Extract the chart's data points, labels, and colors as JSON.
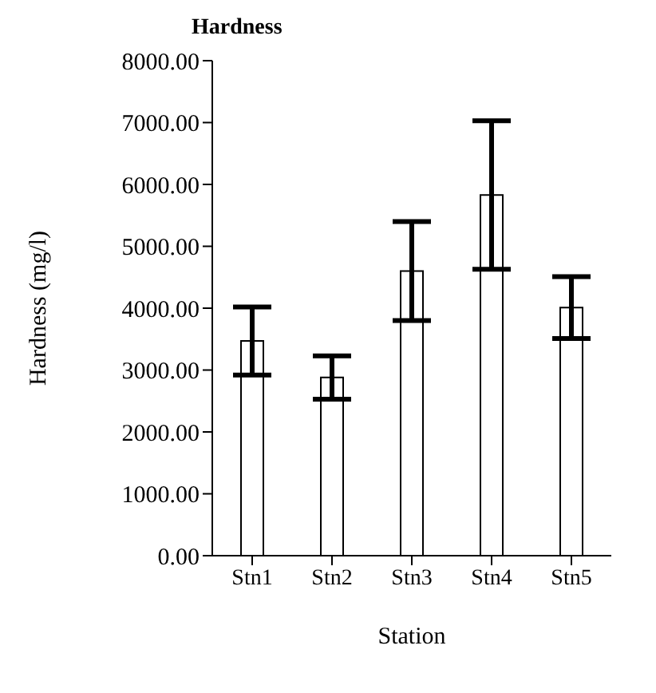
{
  "chart_data": {
    "type": "bar",
    "title": "Hardness",
    "xlabel": "Station",
    "ylabel": "Hardness (mg/l)",
    "categories": [
      "Stn1",
      "Stn2",
      "Stn3",
      "Stn4",
      "Stn5"
    ],
    "values": [
      3470,
      2880,
      4600,
      5830,
      4010
    ],
    "errors": [
      550,
      350,
      800,
      1200,
      500
    ],
    "color": "#ffffff",
    "ylim": [
      0,
      8000
    ],
    "yticks": [
      {
        "value": 0,
        "label": "0.00"
      },
      {
        "value": 1000,
        "label": "1000.00"
      },
      {
        "value": 2000,
        "label": "2000.00"
      },
      {
        "value": 3000,
        "label": "3000.00"
      },
      {
        "value": 4000,
        "label": "4000.00"
      },
      {
        "value": 5000,
        "label": "5000.00"
      },
      {
        "value": 6000,
        "label": "6000.00"
      },
      {
        "value": 7000,
        "label": "7000.00"
      },
      {
        "value": 8000,
        "label": "8000.00"
      }
    ],
    "grid": false,
    "legend": false
  }
}
